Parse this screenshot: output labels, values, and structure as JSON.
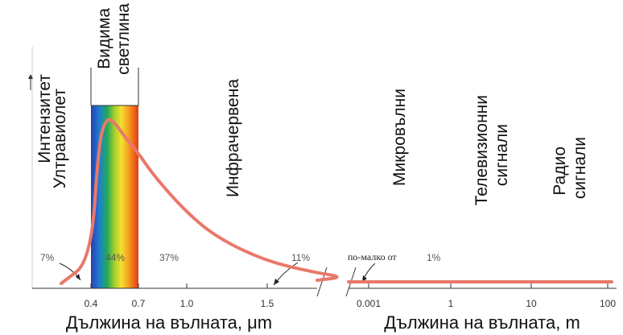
{
  "chart_data": {
    "type": "line",
    "ylabel": "Интензитет",
    "left_axis": {
      "xlabel": "Дължина на вълната, μm",
      "ticks": [
        "0.4",
        "0.7",
        "1.0",
        "1.5"
      ]
    },
    "right_axis": {
      "xlabel": "Дължина на вълната, m",
      "ticks": [
        "0.001",
        "1",
        "10",
        "100"
      ]
    },
    "regions": {
      "uv": "Ултравиолет",
      "visible_line1": "Видима",
      "visible_line2": "светлина",
      "ir": "Инфрачервена",
      "micro": "Микровълни",
      "tv_line1": "Телевизионни",
      "tv_line2": "сигнали",
      "radio_line1": "Радио",
      "radio_line2": "сигнали"
    },
    "percentages": {
      "uv": "7%",
      "visible": "44%",
      "ir_near": "37%",
      "ir_far": "11%",
      "rest_prefix": "по-малко от",
      "rest": "1%"
    },
    "series": [
      {
        "x_um": [
          0.4,
          0.45,
          0.5,
          0.55,
          0.6,
          0.7,
          0.8,
          1.0,
          1.2,
          1.5,
          1.8,
          2.0
        ],
        "y_rel": [
          0.12,
          0.86,
          1.0,
          0.97,
          0.9,
          0.78,
          0.64,
          0.42,
          0.26,
          0.12,
          0.05,
          0.02
        ]
      }
    ],
    "colors": {
      "curve": "#e8796a",
      "axis": "#333333"
    }
  }
}
